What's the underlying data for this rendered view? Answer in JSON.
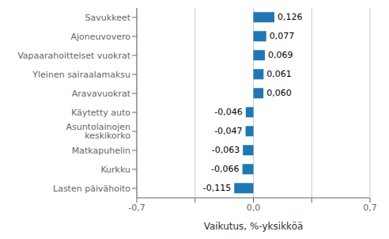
{
  "chart_data": {
    "type": "bar",
    "orientation": "horizontal",
    "categories": [
      "Lasten päivähoito",
      "Kurkku",
      "Matkapuhelin",
      "Asuntolainojen keskikorko",
      "Käytetty auto",
      "Aravavuokrat",
      "Yleinen sairaalamaksu",
      "Vapaarahoitteiset vuokrat",
      "Ajoneuvovero",
      "Savukkeet"
    ],
    "values": [
      -0.115,
      -0.066,
      -0.063,
      -0.047,
      -0.046,
      0.06,
      0.061,
      0.069,
      0.077,
      0.126
    ],
    "value_labels": [
      "-0,115",
      "-0,066",
      "-0,063",
      "-0,047",
      "-0,046",
      "0,060",
      "0,061",
      "0,069",
      "0,077",
      "0,126"
    ],
    "data_labels": true,
    "color": "#1f77b4",
    "xlabel": "Vaikutus, %-yksikköä",
    "xlim": [
      -0.7,
      0.7
    ],
    "xticks": [
      {
        "value": -0.7,
        "label": "-0,7"
      },
      {
        "value": -0.35,
        "label": null
      },
      {
        "value": 0,
        "label": "0,0"
      },
      {
        "value": 0.35,
        "label": null
      },
      {
        "value": 0.7,
        "label": "0,7"
      }
    ],
    "grid": true
  }
}
